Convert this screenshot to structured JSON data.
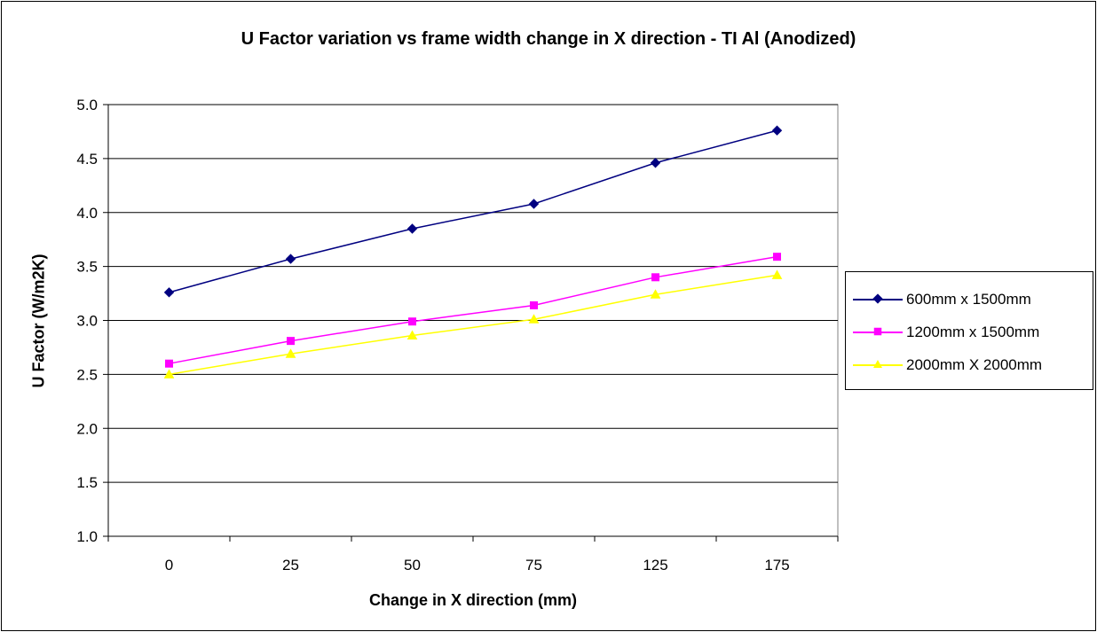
{
  "chart_data": {
    "type": "line",
    "title": "U Factor variation vs frame width change in X direction - TI Al (Anodized)",
    "xlabel": "Change in X direction (mm)",
    "ylabel": "U Factor (W/m2K)",
    "categories": [
      "0",
      "25",
      "50",
      "75",
      "125",
      "175"
    ],
    "ylim": [
      1.0,
      5.0
    ],
    "yticks": [
      "1.0",
      "1.5",
      "2.0",
      "2.5",
      "3.0",
      "3.5",
      "4.0",
      "4.5",
      "5.0"
    ],
    "grid": "horizontal",
    "legend_position": "right",
    "series": [
      {
        "name": "600mm x 1500mm",
        "color": "#000080",
        "marker": "diamond",
        "values": [
          3.26,
          3.57,
          3.85,
          4.08,
          4.46,
          4.76
        ]
      },
      {
        "name": "1200mm x 1500mm",
        "color": "#ff00ff",
        "marker": "square",
        "values": [
          2.6,
          2.81,
          2.99,
          3.14,
          3.4,
          3.59
        ]
      },
      {
        "name": "2000mm X 2000mm",
        "color": "#ffff00",
        "marker": "triangle",
        "values": [
          2.5,
          2.69,
          2.86,
          3.01,
          3.24,
          3.42
        ]
      }
    ]
  }
}
